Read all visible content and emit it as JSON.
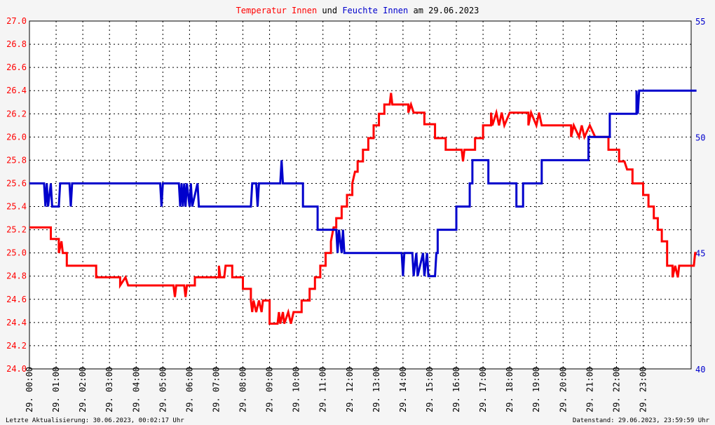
{
  "chart_data": {
    "type": "line",
    "title_parts": [
      {
        "text": "Temperatur Innen",
        "color": "#ff0000"
      },
      {
        "text": "und",
        "color": "#000000"
      },
      {
        "text": "Feuchte Innen",
        "color": "#0000cc"
      },
      {
        "text": "am 29.06.2023",
        "color": "#000000"
      }
    ],
    "x_range": [
      0,
      24
    ],
    "x_tick_labels": [
      "29. 00:00",
      "29. 01:00",
      "29. 02:00",
      "29. 03:00",
      "29. 04:00",
      "29. 05:00",
      "29. 06:00",
      "29. 07:00",
      "29. 08:00",
      "29. 09:00",
      "29. 10:00",
      "29. 11:00",
      "29. 12:00",
      "29. 13:00",
      "29. 14:00",
      "29. 15:00",
      "29. 16:00",
      "29. 17:00",
      "29. 18:00",
      "29. 19:00",
      "29. 20:00",
      "29. 21:00",
      "29. 22:00",
      "29. 23:00"
    ],
    "y_left": {
      "min": 24.0,
      "max": 27.0,
      "ticks": [
        "24.0",
        "24.2",
        "24.4",
        "24.6",
        "24.8",
        "25.0",
        "25.2",
        "25.4",
        "25.6",
        "25.8",
        "26.0",
        "26.2",
        "26.4",
        "26.6",
        "26.8",
        "27.0"
      ],
      "color": "#ff0000"
    },
    "y_right": {
      "min": 40,
      "max": 55,
      "ticks": [
        "40",
        "45",
        "50",
        "55"
      ],
      "color": "#0000cc"
    },
    "grid": true,
    "series": [
      {
        "name": "Temperatur Innen",
        "axis": "left",
        "color": "#ff0000",
        "x_unit": "hours",
        "points": [
          [
            0,
            25.22
          ],
          [
            0.8,
            25.22
          ],
          [
            0.8,
            25.12
          ],
          [
            1.1,
            25.12
          ],
          [
            1.1,
            25.0
          ],
          [
            1.2,
            25.1
          ],
          [
            1.25,
            25.0
          ],
          [
            1.4,
            25.0
          ],
          [
            1.4,
            24.89
          ],
          [
            2.5,
            24.89
          ],
          [
            2.5,
            24.79
          ],
          [
            3.4,
            24.79
          ],
          [
            3.4,
            24.72
          ],
          [
            3.6,
            24.79
          ],
          [
            3.7,
            24.72
          ],
          [
            5.4,
            24.72
          ],
          [
            5.45,
            24.62
          ],
          [
            5.5,
            24.72
          ],
          [
            5.8,
            24.72
          ],
          [
            5.85,
            24.62
          ],
          [
            5.9,
            24.72
          ],
          [
            6.2,
            24.72
          ],
          [
            6.2,
            24.79
          ],
          [
            7.1,
            24.79
          ],
          [
            7.1,
            24.89
          ],
          [
            7.15,
            24.79
          ],
          [
            7.3,
            24.79
          ],
          [
            7.35,
            24.89
          ],
          [
            7.6,
            24.89
          ],
          [
            7.6,
            24.79
          ],
          [
            8.0,
            24.79
          ],
          [
            8.0,
            24.69
          ],
          [
            8.3,
            24.69
          ],
          [
            8.3,
            24.59
          ],
          [
            8.35,
            24.49
          ],
          [
            8.4,
            24.59
          ],
          [
            8.5,
            24.49
          ],
          [
            8.6,
            24.59
          ],
          [
            8.7,
            24.49
          ],
          [
            8.75,
            24.59
          ],
          [
            9.0,
            24.59
          ],
          [
            9.0,
            24.39
          ],
          [
            9.3,
            24.39
          ],
          [
            9.35,
            24.49
          ],
          [
            9.4,
            24.39
          ],
          [
            9.5,
            24.49
          ],
          [
            9.55,
            24.39
          ],
          [
            9.7,
            24.49
          ],
          [
            9.8,
            24.39
          ],
          [
            9.9,
            24.49
          ],
          [
            10.2,
            24.49
          ],
          [
            10.2,
            24.59
          ],
          [
            10.5,
            24.59
          ],
          [
            10.5,
            24.69
          ],
          [
            10.7,
            24.69
          ],
          [
            10.7,
            24.79
          ],
          [
            10.9,
            24.79
          ],
          [
            10.9,
            24.89
          ],
          [
            11.1,
            24.89
          ],
          [
            11.1,
            25.0
          ],
          [
            11.3,
            25.0
          ],
          [
            11.3,
            25.1
          ],
          [
            11.4,
            25.22
          ],
          [
            11.5,
            25.22
          ],
          [
            11.5,
            25.3
          ],
          [
            11.7,
            25.3
          ],
          [
            11.7,
            25.4
          ],
          [
            11.9,
            25.4
          ],
          [
            11.9,
            25.5
          ],
          [
            12.1,
            25.5
          ],
          [
            12.1,
            25.6
          ],
          [
            12.2,
            25.7
          ],
          [
            12.3,
            25.7
          ],
          [
            12.3,
            25.79
          ],
          [
            12.5,
            25.79
          ],
          [
            12.5,
            25.89
          ],
          [
            12.7,
            25.89
          ],
          [
            12.7,
            25.99
          ],
          [
            12.9,
            25.99
          ],
          [
            12.9,
            26.1
          ],
          [
            13.1,
            26.1
          ],
          [
            13.1,
            26.2
          ],
          [
            13.3,
            26.2
          ],
          [
            13.3,
            26.28
          ],
          [
            13.5,
            26.28
          ],
          [
            13.55,
            26.38
          ],
          [
            13.6,
            26.28
          ],
          [
            14.2,
            26.28
          ],
          [
            14.2,
            26.21
          ],
          [
            14.3,
            26.28
          ],
          [
            14.4,
            26.21
          ],
          [
            14.8,
            26.21
          ],
          [
            14.8,
            26.11
          ],
          [
            15.2,
            26.11
          ],
          [
            15.2,
            25.99
          ],
          [
            15.6,
            25.99
          ],
          [
            15.6,
            25.89
          ],
          [
            16.2,
            25.89
          ],
          [
            16.25,
            25.79
          ],
          [
            16.3,
            25.89
          ],
          [
            16.7,
            25.89
          ],
          [
            16.7,
            25.99
          ],
          [
            17.0,
            25.99
          ],
          [
            17.0,
            26.1
          ],
          [
            17.3,
            26.1
          ],
          [
            17.3,
            26.21
          ],
          [
            17.35,
            26.1
          ],
          [
            17.5,
            26.21
          ],
          [
            17.6,
            26.1
          ],
          [
            17.7,
            26.21
          ],
          [
            17.8,
            26.1
          ],
          [
            18.0,
            26.21
          ],
          [
            18.7,
            26.21
          ],
          [
            18.7,
            26.1
          ],
          [
            18.8,
            26.21
          ],
          [
            19.0,
            26.1
          ],
          [
            19.1,
            26.21
          ],
          [
            19.2,
            26.1
          ],
          [
            20.3,
            26.1
          ],
          [
            20.3,
            26.0
          ],
          [
            20.4,
            26.1
          ],
          [
            20.6,
            26.0
          ],
          [
            20.7,
            26.1
          ],
          [
            20.8,
            26.0
          ],
          [
            21.0,
            26.1
          ],
          [
            21.2,
            26.0
          ],
          [
            21.7,
            26.0
          ],
          [
            21.7,
            25.89
          ],
          [
            22.1,
            25.89
          ],
          [
            22.1,
            25.79
          ],
          [
            22.3,
            25.79
          ],
          [
            22.4,
            25.72
          ],
          [
            22.6,
            25.72
          ],
          [
            22.6,
            25.6
          ],
          [
            23.0,
            25.6
          ],
          [
            23.0,
            25.5
          ],
          [
            23.2,
            25.5
          ],
          [
            23.2,
            25.4
          ],
          [
            23.4,
            25.4
          ],
          [
            23.4,
            25.3
          ],
          [
            23.55,
            25.3
          ],
          [
            23.55,
            25.2
          ],
          [
            23.7,
            25.2
          ],
          [
            23.7,
            25.1
          ],
          [
            23.9,
            25.1
          ],
          [
            23.9,
            24.89
          ],
          [
            24.1,
            24.89
          ],
          [
            24.1,
            24.79
          ],
          [
            24.2,
            24.89
          ],
          [
            24.3,
            24.79
          ],
          [
            24.35,
            24.89
          ],
          [
            24.9,
            24.89
          ],
          [
            24.95,
            25.0
          ],
          [
            25.0,
            25.0
          ]
        ]
      },
      {
        "name": "Feuchte Innen",
        "axis": "right",
        "color": "#0000cc",
        "x_unit": "hours",
        "points": [
          [
            0,
            48.0
          ],
          [
            0.55,
            48.0
          ],
          [
            0.6,
            47.0
          ],
          [
            0.65,
            48.0
          ],
          [
            0.7,
            47.0
          ],
          [
            0.8,
            48.0
          ],
          [
            0.85,
            47.0
          ],
          [
            1.1,
            47.0
          ],
          [
            1.15,
            48.0
          ],
          [
            1.5,
            48.0
          ],
          [
            1.55,
            47.0
          ],
          [
            1.6,
            48.0
          ],
          [
            4.9,
            48.0
          ],
          [
            4.95,
            47.0
          ],
          [
            5.0,
            48.0
          ],
          [
            5.6,
            48.0
          ],
          [
            5.65,
            47.0
          ],
          [
            5.7,
            48.0
          ],
          [
            5.75,
            47.0
          ],
          [
            5.8,
            48.0
          ],
          [
            5.85,
            47.0
          ],
          [
            5.9,
            48.0
          ],
          [
            6.0,
            47.0
          ],
          [
            6.05,
            48.0
          ],
          [
            6.1,
            47.0
          ],
          [
            6.3,
            48.0
          ],
          [
            6.35,
            47.0
          ],
          [
            8.3,
            47.0
          ],
          [
            8.35,
            48.0
          ],
          [
            8.5,
            48.0
          ],
          [
            8.55,
            47.0
          ],
          [
            8.6,
            48.0
          ],
          [
            9.4,
            48.0
          ],
          [
            9.45,
            49.0
          ],
          [
            9.5,
            48.0
          ],
          [
            10.25,
            48.0
          ],
          [
            10.25,
            47.0
          ],
          [
            10.8,
            47.0
          ],
          [
            10.8,
            46.0
          ],
          [
            11.5,
            46.0
          ],
          [
            11.55,
            45.0
          ],
          [
            11.6,
            46.0
          ],
          [
            11.7,
            45.0
          ],
          [
            11.75,
            46.0
          ],
          [
            11.8,
            45.0
          ],
          [
            13.95,
            45.0
          ],
          [
            14.0,
            44.0
          ],
          [
            14.05,
            45.0
          ],
          [
            14.35,
            45.0
          ],
          [
            14.4,
            44.0
          ],
          [
            14.5,
            45.0
          ],
          [
            14.55,
            44.0
          ],
          [
            14.75,
            45.0
          ],
          [
            14.8,
            44.0
          ],
          [
            14.9,
            45.0
          ],
          [
            14.95,
            44.0
          ],
          [
            15.2,
            44.0
          ],
          [
            15.25,
            45.0
          ],
          [
            15.3,
            45.0
          ],
          [
            15.3,
            46.0
          ],
          [
            16.0,
            46.0
          ],
          [
            16.0,
            47.0
          ],
          [
            16.5,
            47.0
          ],
          [
            16.5,
            48.0
          ],
          [
            16.6,
            48.0
          ],
          [
            16.6,
            49.0
          ],
          [
            17.2,
            49.0
          ],
          [
            17.2,
            48.0
          ],
          [
            18.25,
            48.0
          ],
          [
            18.25,
            47.0
          ],
          [
            18.5,
            47.0
          ],
          [
            18.5,
            48.0
          ],
          [
            19.2,
            48.0
          ],
          [
            19.2,
            49.0
          ],
          [
            20.95,
            49.0
          ],
          [
            20.95,
            50.0
          ],
          [
            21.75,
            50.0
          ],
          [
            21.75,
            51.0
          ],
          [
            22.75,
            51.0
          ],
          [
            22.75,
            52.0
          ],
          [
            22.8,
            51.0
          ],
          [
            22.85,
            52.0
          ],
          [
            25.0,
            52.0
          ]
        ]
      }
    ],
    "footer_left": "Letzte Aktualisierung: 30.06.2023, 00:02:17 Uhr",
    "footer_right": "Datenstand: 29.06.2023, 23:59:59 Uhr"
  }
}
